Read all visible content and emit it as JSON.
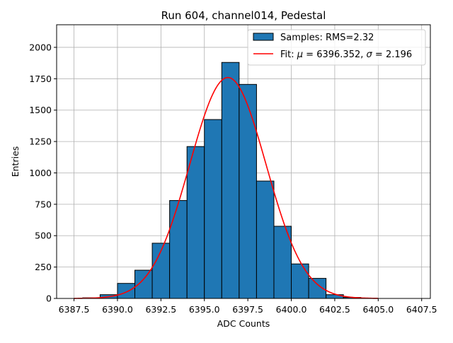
{
  "chart_data": {
    "type": "bar",
    "title": "Run 604, channel014, Pedestal",
    "xlabel": "ADC Counts",
    "ylabel": "Entries",
    "xlim": [
      6386.5,
      6408.0
    ],
    "ylim": [
      0,
      2180
    ],
    "xticks": [
      6387.5,
      6390.0,
      6392.5,
      6395.0,
      6397.5,
      6400.0,
      6402.5,
      6405.0,
      6407.5
    ],
    "xtick_labels": [
      "6387.5",
      "6390.0",
      "6392.5",
      "6395.0",
      "6397.5",
      "6400.0",
      "6402.5",
      "6405.0",
      "6407.5"
    ],
    "yticks": [
      0,
      250,
      500,
      750,
      1000,
      1250,
      1500,
      1750,
      2000
    ],
    "ytick_labels": [
      "0",
      "250",
      "500",
      "750",
      "1000",
      "1250",
      "1500",
      "1750",
      "2000"
    ],
    "grid": true,
    "legend_position": "top-right",
    "colors": {
      "bars": "#1f77b4",
      "bar_edge": "#000000",
      "fit": "#ff0000",
      "grid": "#b0b0b0"
    },
    "histogram": {
      "name": "Samples: RMS=2.32",
      "bin_edges": [
        6387.0,
        6388.0,
        6389.0,
        6390.0,
        6391.0,
        6392.0,
        6393.0,
        6394.0,
        6395.0,
        6396.0,
        6397.0,
        6398.0,
        6399.0,
        6400.0,
        6401.0,
        6402.0,
        6403.0,
        6404.0,
        6405.0,
        6406.0,
        6407.0
      ],
      "values": [
        0,
        5,
        30,
        120,
        225,
        440,
        780,
        1210,
        1425,
        1880,
        1705,
        935,
        575,
        275,
        160,
        30,
        8,
        0,
        0,
        0
      ]
    },
    "fit": {
      "name_prefix": "Fit: ",
      "mu_symbol": "μ",
      "sigma_symbol": "σ",
      "mu": "6396.352",
      "sigma": "2.196",
      "x_range": [
        6387.5,
        6405.0
      ],
      "peak_value": 1760
    }
  }
}
